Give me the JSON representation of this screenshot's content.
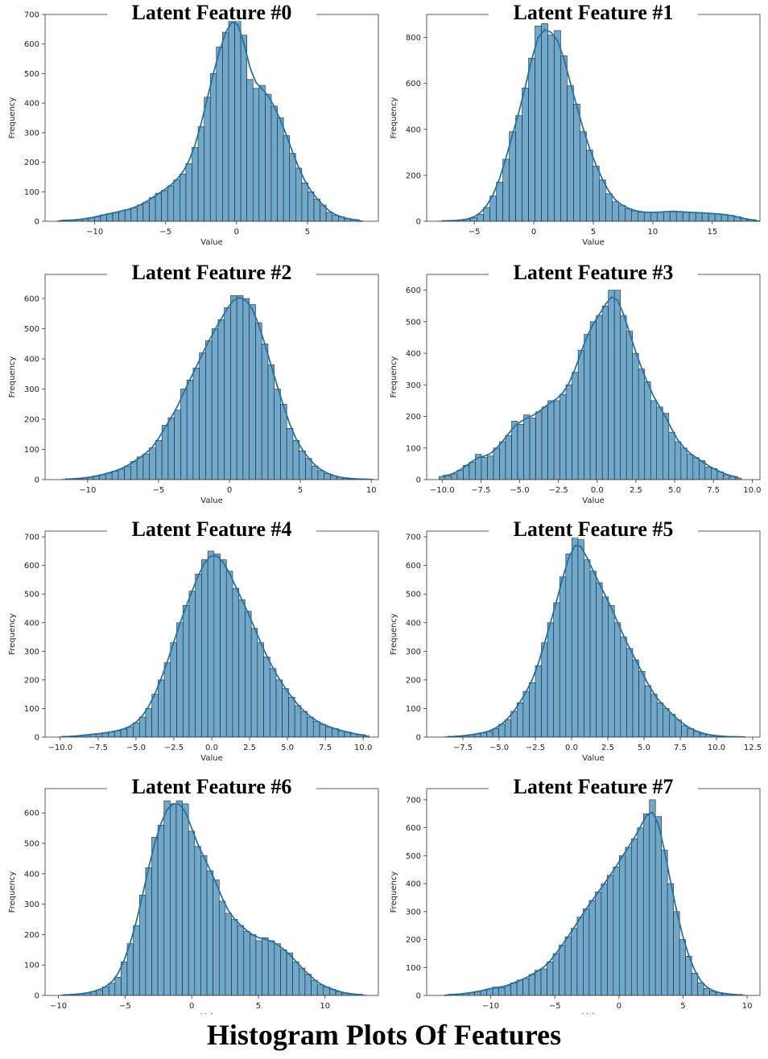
{
  "figure": {
    "title": "Histogram Plots Of Features",
    "bar_color": "#6fa8cb",
    "line_color": "#2471a3",
    "edge_color": "#222222"
  },
  "chart_data": [
    {
      "type": "bar",
      "title": "Latent Feature #0",
      "xlabel": "Value",
      "ylabel": "Frequency",
      "xlim": [
        -13.5,
        10
      ],
      "ylim": [
        0,
        700
      ],
      "xticks": [
        -10,
        -5,
        0,
        5
      ],
      "xtick_labels": [
        "−10",
        "−5",
        "0",
        "5"
      ],
      "yticks": [
        0,
        100,
        200,
        300,
        400,
        500,
        600,
        700
      ],
      "bin_start": -12.6,
      "bin_width": 0.43,
      "values": [
        2,
        3,
        4,
        6,
        8,
        12,
        16,
        22,
        26,
        30,
        35,
        40,
        45,
        55,
        65,
        80,
        95,
        105,
        120,
        140,
        160,
        195,
        250,
        320,
        420,
        500,
        590,
        640,
        700,
        700,
        630,
        480,
        450,
        460,
        430,
        390,
        350,
        290,
        230,
        180,
        130,
        100,
        75,
        55,
        30,
        20,
        15,
        8,
        5,
        2
      ]
    },
    {
      "type": "bar",
      "title": "Latent Feature #1",
      "xlabel": "Value",
      "ylabel": "Frequency",
      "xlim": [
        -9,
        19
      ],
      "ylim": [
        0,
        900
      ],
      "xticks": [
        -5,
        0,
        5,
        10,
        15
      ],
      "xtick_labels": [
        "−5",
        "0",
        "5",
        "10",
        "15"
      ],
      "yticks": [
        0,
        200,
        400,
        600,
        800
      ],
      "bin_start": -8,
      "bin_width": 0.54,
      "values": [
        1,
        2,
        3,
        5,
        8,
        15,
        30,
        60,
        110,
        170,
        270,
        390,
        460,
        580,
        710,
        850,
        860,
        810,
        830,
        720,
        590,
        510,
        390,
        310,
        240,
        180,
        120,
        85,
        70,
        55,
        45,
        40,
        38,
        38,
        40,
        42,
        45,
        42,
        40,
        38,
        38,
        36,
        34,
        32,
        30,
        26,
        20,
        12,
        6,
        2
      ]
    },
    {
      "type": "bar",
      "title": "Latent Feature #2",
      "xlabel": "Value",
      "ylabel": "Frequency",
      "xlim": [
        -13,
        10.5
      ],
      "ylim": [
        0,
        680
      ],
      "xticks": [
        -10,
        -5,
        0,
        5,
        10
      ],
      "xtick_labels": [
        "−10",
        "−5",
        "0",
        "5",
        "10"
      ],
      "yticks": [
        0,
        100,
        200,
        300,
        400,
        500,
        600
      ],
      "bin_start": -11.8,
      "bin_width": 0.44,
      "values": [
        1,
        2,
        3,
        5,
        8,
        12,
        16,
        22,
        28,
        35,
        45,
        60,
        75,
        85,
        105,
        130,
        180,
        205,
        230,
        300,
        330,
        370,
        420,
        460,
        500,
        530,
        570,
        610,
        610,
        600,
        580,
        520,
        450,
        380,
        300,
        250,
        170,
        130,
        95,
        70,
        45,
        30,
        20,
        12,
        8,
        4,
        3,
        2,
        1,
        1
      ]
    },
    {
      "type": "bar",
      "title": "Latent Feature #3",
      "xlabel": "Value",
      "ylabel": "Frequency",
      "xlim": [
        -11,
        10.5
      ],
      "ylim": [
        0,
        650
      ],
      "xticks": [
        -10,
        -7.5,
        -5,
        -2.5,
        0,
        2.5,
        5,
        7.5,
        10
      ],
      "xtick_labels": [
        "−10.0",
        "−7.5",
        "−5.0",
        "−2.5",
        "0.0",
        "2.5",
        "5.0",
        "7.5",
        "10.0"
      ],
      "yticks": [
        0,
        100,
        200,
        300,
        400,
        500,
        600
      ],
      "bin_start": -10.2,
      "bin_width": 0.39,
      "values": [
        10,
        12,
        18,
        30,
        45,
        55,
        80,
        70,
        75,
        100,
        120,
        140,
        185,
        175,
        205,
        195,
        215,
        230,
        250,
        250,
        270,
        300,
        340,
        410,
        460,
        500,
        520,
        550,
        600,
        600,
        520,
        470,
        400,
        350,
        310,
        250,
        230,
        210,
        150,
        120,
        100,
        80,
        70,
        60,
        40,
        35,
        25,
        15,
        10,
        5
      ]
    },
    {
      "type": "bar",
      "title": "Latent Feature #4",
      "xlabel": "Value",
      "ylabel": "Frequency",
      "xlim": [
        -11,
        11
      ],
      "ylim": [
        0,
        720
      ],
      "xticks": [
        -10,
        -7.5,
        -5,
        -2.5,
        0,
        2.5,
        5,
        7.5,
        10
      ],
      "xtick_labels": [
        "−10.0",
        "−7.5",
        "−5.0",
        "−2.5",
        "0.0",
        "2.5",
        "5.0",
        "7.5",
        "10.0"
      ],
      "yticks": [
        0,
        100,
        200,
        300,
        400,
        500,
        600,
        700
      ],
      "bin_start": -10.1,
      "bin_width": 0.41,
      "values": [
        1,
        2,
        3,
        5,
        8,
        10,
        12,
        15,
        18,
        22,
        28,
        35,
        50,
        70,
        100,
        150,
        200,
        260,
        330,
        400,
        460,
        510,
        570,
        620,
        650,
        640,
        620,
        580,
        520,
        480,
        440,
        380,
        330,
        280,
        240,
        200,
        170,
        140,
        110,
        90,
        70,
        55,
        45,
        35,
        30,
        22,
        18,
        12,
        8,
        4
      ]
    },
    {
      "type": "bar",
      "title": "Latent Feature #5",
      "xlabel": "Value",
      "ylabel": "Frequency",
      "xlim": [
        -10,
        13
      ],
      "ylim": [
        0,
        720
      ],
      "xticks": [
        -7.5,
        -5,
        -2.5,
        0,
        2.5,
        5,
        7.5,
        10,
        12.5
      ],
      "xtick_labels": [
        "−7.5",
        "−5.0",
        "−2.5",
        "0.0",
        "2.5",
        "5.0",
        "7.5",
        "10.0",
        "12.5"
      ],
      "yticks": [
        0,
        100,
        200,
        300,
        400,
        500,
        600,
        700
      ],
      "bin_start": -8.8,
      "bin_width": 0.42,
      "values": [
        1,
        2,
        3,
        5,
        8,
        12,
        15,
        20,
        30,
        45,
        60,
        90,
        120,
        160,
        190,
        250,
        330,
        400,
        470,
        560,
        640,
        700,
        690,
        620,
        580,
        540,
        490,
        460,
        400,
        350,
        310,
        270,
        230,
        180,
        150,
        120,
        100,
        80,
        60,
        40,
        30,
        20,
        12,
        8,
        5,
        3,
        2,
        1,
        1,
        0
      ]
    },
    {
      "type": "bar",
      "title": "Latent Feature #6",
      "xlabel": "Value",
      "ylabel": "Frequency",
      "xlim": [
        -11,
        14
      ],
      "ylim": [
        0,
        680
      ],
      "xticks": [
        -10,
        -5,
        0,
        5,
        10
      ],
      "xtick_labels": [
        "−10",
        "−5",
        "0",
        "5",
        "10"
      ],
      "yticks": [
        0,
        100,
        200,
        300,
        400,
        500,
        600
      ],
      "bin_start": -9.9,
      "bin_width": 0.46,
      "values": [
        1,
        2,
        3,
        5,
        8,
        12,
        18,
        28,
        40,
        60,
        110,
        170,
        230,
        330,
        420,
        520,
        560,
        640,
        630,
        640,
        630,
        540,
        490,
        460,
        410,
        380,
        310,
        270,
        250,
        230,
        210,
        200,
        180,
        190,
        180,
        170,
        150,
        140,
        110,
        90,
        70,
        50,
        35,
        28,
        20,
        12,
        8,
        5,
        3,
        1
      ]
    },
    {
      "type": "bar",
      "title": "Latent Feature #7",
      "xlabel": "Value",
      "ylabel": "Frequency",
      "xlim": [
        -15,
        11
      ],
      "ylim": [
        0,
        740
      ],
      "xticks": [
        -10,
        -5,
        0,
        5,
        10
      ],
      "xtick_labels": [
        "−10",
        "−5",
        "0",
        "5",
        "10"
      ],
      "yticks": [
        0,
        100,
        200,
        300,
        400,
        500,
        600,
        700
      ],
      "bin_start": -13.6,
      "bin_width": 0.47,
      "values": [
        2,
        3,
        5,
        7,
        10,
        14,
        18,
        24,
        30,
        28,
        35,
        45,
        55,
        60,
        75,
        90,
        95,
        120,
        150,
        180,
        210,
        240,
        280,
        310,
        340,
        370,
        400,
        430,
        460,
        500,
        530,
        560,
        600,
        650,
        700,
        640,
        520,
        400,
        300,
        200,
        140,
        80,
        45,
        25,
        15,
        10,
        6,
        4,
        2,
        1
      ]
    }
  ]
}
